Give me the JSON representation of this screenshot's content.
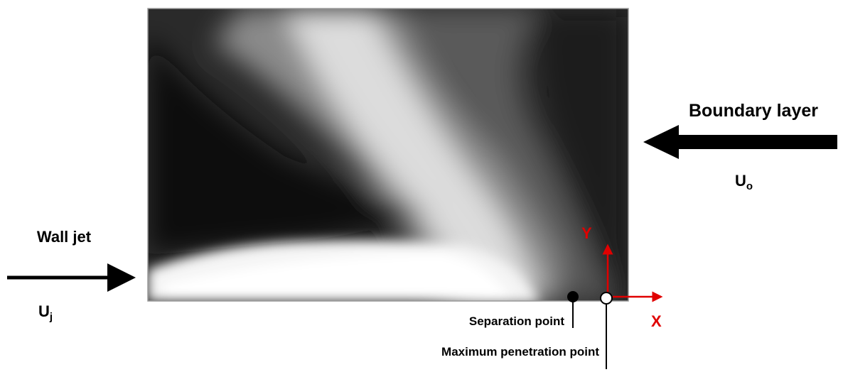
{
  "labels": {
    "boundary_layer": "Boundary layer",
    "free_stream_velocity": {
      "main": "U",
      "sub": "o"
    },
    "wall_jet": "Wall jet",
    "jet_velocity": {
      "main": "U",
      "sub": "j"
    },
    "y_axis": "Y",
    "x_axis": "X",
    "separation_point": "Separation point",
    "max_penetration_point": "Maximum penetration point"
  }
}
